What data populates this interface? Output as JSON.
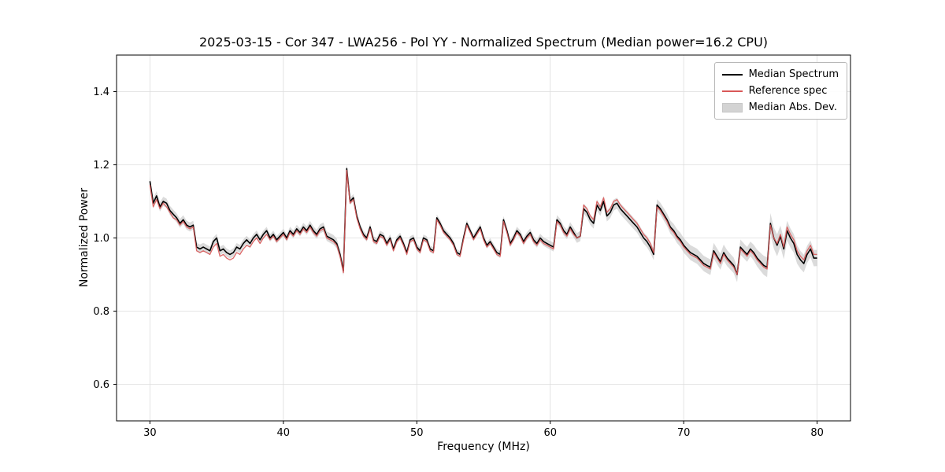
{
  "chart_data": {
    "type": "line",
    "title": "2025-03-15 - Cor 347 - LWA256 - Pol YY - Normalized Spectrum (Median power=16.2 CPU)",
    "xlabel": "Frequency (MHz)",
    "ylabel": "Normalized Power",
    "xlim": [
      27.5,
      82.5
    ],
    "ylim": [
      0.5,
      1.5
    ],
    "xticks": [
      30,
      40,
      50,
      60,
      70,
      80
    ],
    "yticks": [
      0.6,
      0.8,
      1.0,
      1.2,
      1.4
    ],
    "grid": true,
    "legend_position": "upper right",
    "x_start": 30,
    "x_step": 0.25,
    "series": [
      {
        "name": "Median Spectrum",
        "color": "#000000",
        "values": [
          1.155,
          1.095,
          1.115,
          1.085,
          1.1,
          1.095,
          1.075,
          1.065,
          1.055,
          1.04,
          1.05,
          1.035,
          1.03,
          1.035,
          0.975,
          0.97,
          0.975,
          0.97,
          0.965,
          0.99,
          1.0,
          0.965,
          0.97,
          0.96,
          0.955,
          0.96,
          0.975,
          0.97,
          0.985,
          0.995,
          0.985,
          1.0,
          1.01,
          0.995,
          1.01,
          1.02,
          1.0,
          1.01,
          0.995,
          1.005,
          1.015,
          1.0,
          1.02,
          1.01,
          1.025,
          1.015,
          1.03,
          1.02,
          1.035,
          1.02,
          1.01,
          1.025,
          1.03,
          1.005,
          1.0,
          0.995,
          0.985,
          0.955,
          0.91,
          1.19,
          1.1,
          1.11,
          1.06,
          1.03,
          1.01,
          1.0,
          1.03,
          0.995,
          0.99,
          1.01,
          1.005,
          0.985,
          1.0,
          0.97,
          0.995,
          1.005,
          0.985,
          0.96,
          0.995,
          1.0,
          0.975,
          0.965,
          1.0,
          0.995,
          0.97,
          0.965,
          1.055,
          1.04,
          1.02,
          1.01,
          1.0,
          0.985,
          0.96,
          0.955,
          1.0,
          1.04,
          1.02,
          1.0,
          1.015,
          1.03,
          1.0,
          0.98,
          0.99,
          0.975,
          0.96,
          0.955,
          1.05,
          1.02,
          0.985,
          1.0,
          1.02,
          1.01,
          0.99,
          1.005,
          1.015,
          0.995,
          0.985,
          1.0,
          0.99,
          0.985,
          0.98,
          0.975,
          1.05,
          1.04,
          1.02,
          1.01,
          1.03,
          1.015,
          1.0,
          1.005,
          1.08,
          1.07,
          1.05,
          1.04,
          1.09,
          1.075,
          1.1,
          1.06,
          1.07,
          1.09,
          1.095,
          1.08,
          1.07,
          1.06,
          1.05,
          1.04,
          1.03,
          1.015,
          1.0,
          0.99,
          0.975,
          0.955,
          1.09,
          1.08,
          1.065,
          1.05,
          1.03,
          1.02,
          1.005,
          0.995,
          0.98,
          0.97,
          0.96,
          0.955,
          0.95,
          0.94,
          0.93,
          0.925,
          0.92,
          0.965,
          0.95,
          0.935,
          0.96,
          0.945,
          0.935,
          0.925,
          0.9,
          0.975,
          0.965,
          0.955,
          0.97,
          0.96,
          0.945,
          0.935,
          0.925,
          0.92,
          1.04,
          1.0,
          0.98,
          1.005,
          0.97,
          1.02,
          1.0,
          0.985,
          0.955,
          0.94,
          0.93,
          0.955,
          0.97,
          0.945,
          0.945
        ]
      },
      {
        "name": "Reference spec",
        "color": "#d95858",
        "values": [
          1.145,
          1.085,
          1.105,
          1.08,
          1.095,
          1.085,
          1.07,
          1.055,
          1.05,
          1.035,
          1.045,
          1.03,
          1.025,
          1.03,
          0.965,
          0.96,
          0.965,
          0.96,
          0.955,
          0.975,
          0.985,
          0.95,
          0.955,
          0.945,
          0.94,
          0.945,
          0.96,
          0.955,
          0.97,
          0.98,
          0.975,
          0.99,
          1.0,
          0.985,
          1.0,
          1.01,
          0.995,
          1.005,
          0.99,
          1.0,
          1.01,
          0.995,
          1.015,
          1.005,
          1.02,
          1.01,
          1.025,
          1.015,
          1.03,
          1.015,
          1.005,
          1.02,
          1.025,
          1.0,
          0.995,
          0.99,
          0.98,
          0.95,
          0.905,
          1.185,
          1.095,
          1.105,
          1.055,
          1.025,
          1.005,
          0.995,
          1.025,
          0.99,
          0.985,
          1.005,
          1.0,
          0.98,
          0.995,
          0.965,
          0.99,
          1.0,
          0.98,
          0.955,
          0.99,
          0.995,
          0.97,
          0.96,
          0.995,
          0.99,
          0.965,
          0.96,
          1.05,
          1.035,
          1.015,
          1.005,
          0.995,
          0.98,
          0.955,
          0.95,
          0.995,
          1.035,
          1.015,
          0.995,
          1.01,
          1.025,
          0.995,
          0.975,
          0.985,
          0.97,
          0.955,
          0.95,
          1.045,
          1.015,
          0.98,
          0.995,
          1.015,
          1.005,
          0.985,
          1.0,
          1.01,
          0.99,
          0.98,
          0.995,
          0.985,
          0.98,
          0.975,
          0.97,
          1.045,
          1.035,
          1.015,
          1.005,
          1.025,
          1.01,
          1.0,
          1.005,
          1.09,
          1.08,
          1.06,
          1.05,
          1.1,
          1.085,
          1.11,
          1.07,
          1.08,
          1.1,
          1.105,
          1.09,
          1.08,
          1.07,
          1.06,
          1.05,
          1.04,
          1.025,
          1.01,
          1.0,
          0.985,
          0.96,
          1.085,
          1.075,
          1.06,
          1.045,
          1.025,
          1.015,
          1.0,
          0.99,
          0.975,
          0.965,
          0.955,
          0.95,
          0.945,
          0.935,
          0.925,
          0.92,
          0.915,
          0.96,
          0.945,
          0.93,
          0.955,
          0.94,
          0.93,
          0.92,
          0.9,
          0.97,
          0.96,
          0.95,
          0.965,
          0.955,
          0.94,
          0.93,
          0.92,
          0.915,
          1.035,
          1.0,
          0.985,
          1.01,
          0.975,
          1.03,
          1.01,
          0.995,
          0.965,
          0.95,
          0.94,
          0.965,
          0.98,
          0.955,
          0.955
        ]
      }
    ],
    "band": {
      "name": "Median Abs. Dev.",
      "color": "#bdbdbd",
      "center_series": "Median Spectrum",
      "halfwidth_x": [
        30,
        40,
        44.5,
        45,
        55,
        60,
        64,
        68,
        70,
        73,
        75,
        76,
        77,
        78,
        80
      ],
      "halfwidth": [
        0.013,
        0.01,
        0.014,
        0.01,
        0.009,
        0.012,
        0.015,
        0.016,
        0.02,
        0.022,
        0.02,
        0.026,
        0.03,
        0.026,
        0.022
      ]
    }
  }
}
